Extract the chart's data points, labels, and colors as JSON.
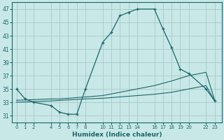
{
  "xlabel": "Humidex (Indice chaleur)",
  "bg_color": "#c8e8e8",
  "grid_color": "#a8c8c8",
  "line_color": "#1a6666",
  "x_ticks": [
    0,
    1,
    2,
    4,
    5,
    6,
    7,
    8,
    10,
    11,
    12,
    13,
    14,
    16,
    17,
    18,
    19,
    20,
    22,
    23
  ],
  "x_tick_labels": [
    "0",
    "1",
    "2",
    "4",
    "5",
    "6",
    "7",
    "8",
    "10",
    "11",
    "12",
    "13",
    "14",
    "16",
    "17",
    "18",
    "19",
    "20",
    "22",
    "23"
  ],
  "ylim": [
    30,
    48
  ],
  "yticks": [
    31,
    33,
    35,
    37,
    39,
    41,
    43,
    45,
    47
  ],
  "curve1_x": [
    0,
    1,
    2,
    4,
    5,
    6,
    7,
    8,
    10,
    11,
    12,
    13,
    14,
    16,
    17,
    18,
    19,
    20,
    22,
    23
  ],
  "curve1_y": [
    35.0,
    33.5,
    33.0,
    32.5,
    31.5,
    31.2,
    31.2,
    35.0,
    42.0,
    43.5,
    46.0,
    46.5,
    47.0,
    47.0,
    44.0,
    41.2,
    38.0,
    37.3,
    35.0,
    33.2
  ],
  "curve2_x": [
    0,
    2,
    4,
    5,
    6,
    7,
    8,
    10,
    12,
    14,
    16,
    18,
    20,
    22,
    23
  ],
  "curve2_y": [
    33.3,
    33.4,
    33.5,
    33.5,
    33.6,
    33.7,
    33.8,
    34.0,
    34.5,
    35.0,
    35.5,
    36.2,
    37.0,
    37.5,
    33.3
  ],
  "curve3_x": [
    0,
    4,
    8,
    10,
    12,
    14,
    16,
    18,
    20,
    22,
    23
  ],
  "curve3_y": [
    33.0,
    33.2,
    33.5,
    33.6,
    33.8,
    34.0,
    34.2,
    34.5,
    35.0,
    35.5,
    33.2
  ]
}
